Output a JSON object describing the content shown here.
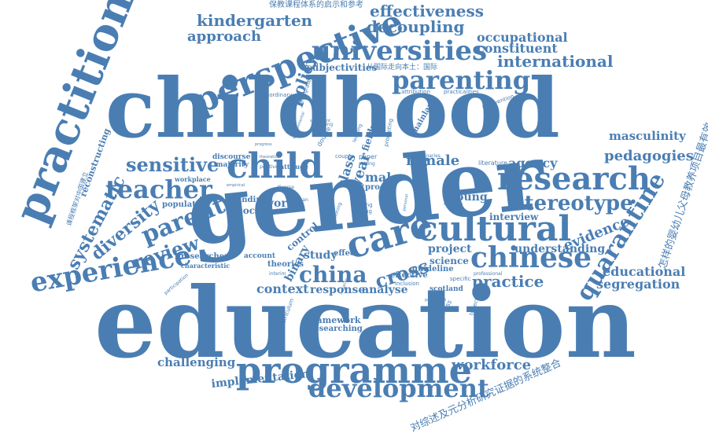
{
  "cloud": {
    "color": "#4a7eb3",
    "words": {
      "education": "education",
      "gender": "gender",
      "childhood": "childhood",
      "practitioner": "practitioner",
      "programme": "programme",
      "perspective": "perspective",
      "universities": "universities",
      "cultural": "cultural",
      "research": "research",
      "development": "development",
      "chinese": "chinese",
      "child": "child",
      "care": "care",
      "parenting": "parenting",
      "experience": "experience",
      "teacher": "teacher",
      "parent": "parent",
      "quarantine": "quarantine",
      "stereotype": "stereotype",
      "china": "china",
      "sensitive": "sensitive",
      "review": "review",
      "diversity": "diversity",
      "systematic": "systematic",
      "cross": "cross",
      "international": "international",
      "kindergarten": "kindergarten",
      "effectiveness": "effectiveness",
      "decoupling": "decoupling",
      "occupational": "occupational",
      "constituent": "constituent",
      "practice": "practice",
      "workforce": "workforce",
      "pedagogies": "pedagogies",
      "masculinity": "masculinity",
      "evidence": "evidence",
      "educational": "educational",
      "segregation": "segregation",
      "approach": "approach",
      "policy": "policy",
      "agency": "agency",
      "female": "female",
      "male": "male",
      "context": "context",
      "response": "response",
      "analyse": "analyse",
      "challenging": "challenging",
      "implementation": "implementation",
      "framework": "framework",
      "researching": "researching",
      "understanding": "understanding",
      "interview": "interview",
      "project": "project",
      "science": "science",
      "young": "young",
      "study": "study",
      "binary": "binary",
      "theories": "theories",
      "effective": "effective",
      "guideline": "guideline",
      "scotland": "scotland",
      "world": "world",
      "social": "social",
      "finding": "finding",
      "population": "population",
      "researcher": "researcher",
      "characteristic": "characteristic",
      "account": "account",
      "reconstructing": "reconstructing",
      "subjectivities": "subjectivities",
      "mainland": "mainland",
      "fieldwork": "fieldwork",
      "report": "report",
      "control": "control",
      "class": "class",
      "year": "year",
      "attitude": "attitude",
      "majority": "majority",
      "discourse": "discourse",
      "workplace": "workplace",
      "extraordinary": "extraordinary",
      "integrated": "integrated",
      "attribution": "attribution",
      "practicalities": "practicalities",
      "intervention": "intervention",
      "literature": "literature",
      "readiness": "readiness",
      "trajectories": "trajectories",
      "curriculum": "curriculum",
      "specific": "specific",
      "professional": "professional",
      "inclusion": "inclusion",
      "training": "training",
      "double": "double",
      "promoting": "promoting",
      "learning": "learning",
      "positive": "positive",
      "theoretical": "theoretical",
      "progress": "progress",
      "environmental": "environmental",
      "significant": "significant",
      "couple": "couple",
      "paper": "paper",
      "setting": "setting",
      "proc": "proc",
      "belief": "belief",
      "result": "result",
      "hong": "hong",
      "kong": "kong",
      "binaries": "binaries",
      "personal": "personal",
      "global": "global",
      "workshop": "workshop",
      "effect": "effect",
      "diverse": "diverse",
      "woman": "woman",
      "design": "design",
      "participant": "participant",
      "participation": "participation",
      "interim": "interim",
      "negative": "negative",
      "empirical": "empirical",
      "sectioning": "sectioning",
      "zh_top": "保教课程体系的启示和参考",
      "zh_mid": "从国际走向本土：国际",
      "zh_left": "课程框架对中国建立",
      "zh_right": "怎样的婴幼儿父母教养项目最有效",
      "zh_bottom": "对综述及元分析研究证据的系统整合"
    }
  }
}
